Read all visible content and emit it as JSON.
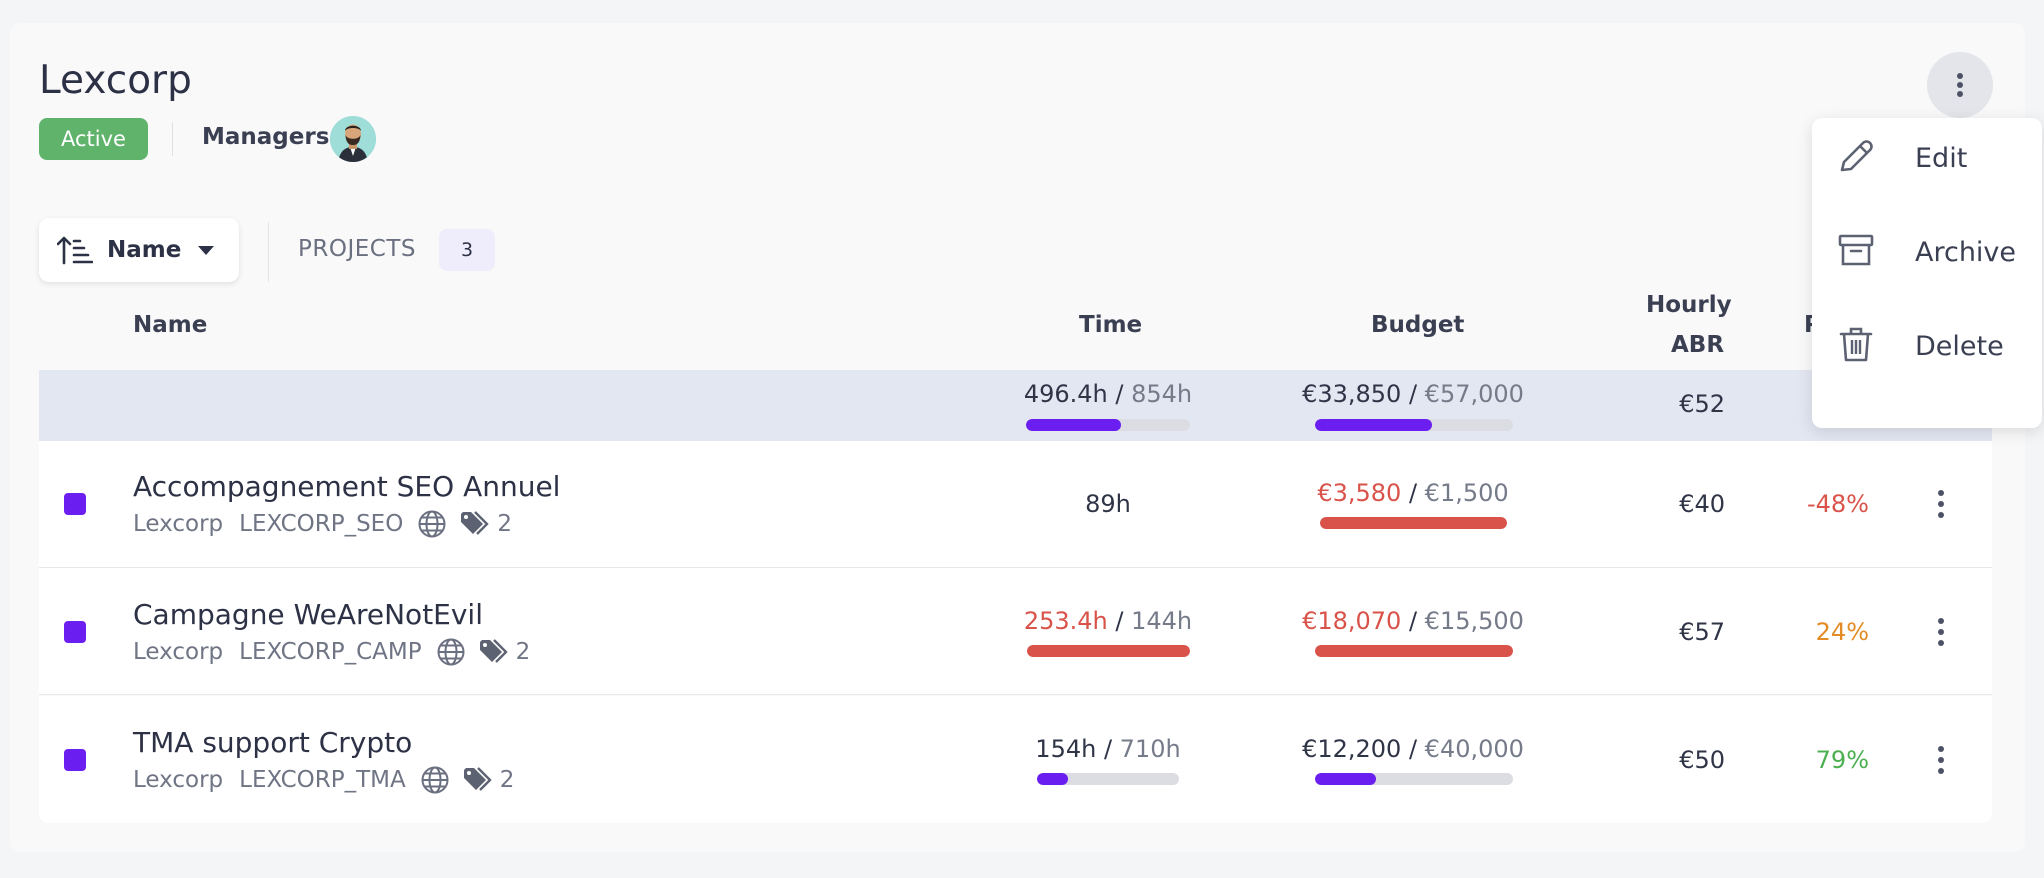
{
  "header": {
    "title": "Lexcorp",
    "status": "Active",
    "managers_label": "Managers"
  },
  "toolbar": {
    "sort_label": "Name",
    "projects_label": "PROJECTS",
    "projects_count": "3"
  },
  "table": {
    "columns": {
      "name": "Name",
      "time": "Time",
      "budget": "Budget",
      "hourly_line1": "Hourly",
      "hourly_line2": "ABR",
      "profit_partial": "P"
    },
    "summary": {
      "time_used": "496.4h",
      "time_total": "854h",
      "time_progress": 0.58,
      "budget_used": "€33,850",
      "budget_total": "€57,000",
      "budget_progress": 0.59,
      "hourly": "€52"
    },
    "rows": [
      {
        "name": "Accompagnement SEO Annuel",
        "client": "Lexcorp",
        "code": "LEXCORP_SEO",
        "tag_count": "2",
        "time": "89h",
        "budget_used": "€3,580",
        "budget_total": "€1,500",
        "budget_progress": 1.0,
        "hourly": "€40",
        "profit": "-48%"
      },
      {
        "name": "Campagne WeAreNotEvil",
        "client": "Lexcorp",
        "code": "LEXCORP_CAMP",
        "tag_count": "2",
        "time_used": "253.4h",
        "time_total": "144h",
        "time_progress": 1.0,
        "budget_used": "€18,070",
        "budget_total": "€15,500",
        "budget_progress": 1.0,
        "hourly": "€57",
        "profit": "24%"
      },
      {
        "name": "TMA support Crypto",
        "client": "Lexcorp",
        "code": "LEXCORP_TMA",
        "tag_count": "2",
        "time_used": "154h",
        "time_total": "710h",
        "time_progress": 0.22,
        "budget_used": "€12,200",
        "budget_total": "€40,000",
        "budget_progress": 0.31,
        "hourly": "€50",
        "profit": "79%"
      }
    ]
  },
  "menu": {
    "items": [
      {
        "label": "Edit",
        "icon": "pencil-icon"
      },
      {
        "label": "Archive",
        "icon": "archive-icon"
      },
      {
        "label": "Delete",
        "icon": "trash-icon"
      }
    ]
  },
  "colors": {
    "accent": "#6a1ef0",
    "over_budget": "#d9534a",
    "status_active": "#5fb36b",
    "profit_mid": "#e38c25",
    "profit_good": "#4caf50"
  }
}
